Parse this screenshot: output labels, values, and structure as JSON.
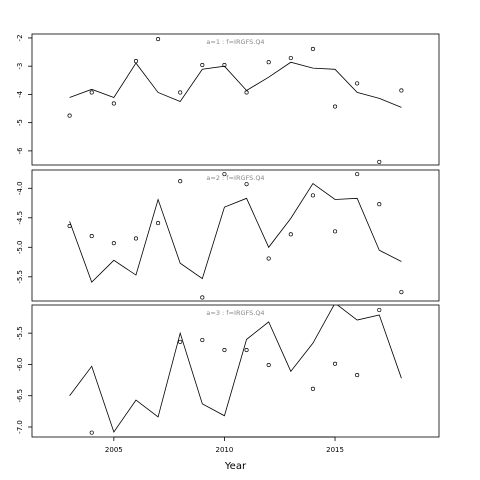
{
  "chart_data": [
    {
      "type": "line",
      "annotation": "a=1 : f=IRGFS.Q4",
      "x": [
        2003,
        2004,
        2005,
        2006,
        2007,
        2008,
        2009,
        2010,
        2011,
        2012,
        2013,
        2014,
        2015,
        2016,
        2017,
        2018
      ],
      "xlim": [
        2001.3,
        2019.7
      ],
      "ylim": [
        -6.5,
        -1.86
      ],
      "yticks": [
        -2,
        -3,
        -4,
        -5,
        -6
      ],
      "series": [
        {
          "style": "line",
          "color": "#000000",
          "values": [
            -4.11,
            -3.82,
            -4.11,
            -2.89,
            -3.93,
            -4.25,
            -3.11,
            -3.0,
            -3.86,
            -3.39,
            -2.86,
            -3.07,
            -3.11,
            -3.93,
            -4.14,
            -4.46
          ]
        },
        {
          "style": "points",
          "color": "#000000",
          "values": [
            -4.75,
            -3.93,
            -4.32,
            -2.82,
            -2.04,
            -3.93,
            -2.96,
            -2.96,
            -3.93,
            -2.86,
            -2.71,
            -2.39,
            -4.43,
            -3.61,
            -6.39,
            -3.86
          ]
        }
      ]
    },
    {
      "type": "line",
      "annotation": "a=2 : f=IRGFS.Q4",
      "x": [
        2003,
        2004,
        2005,
        2006,
        2007,
        2008,
        2009,
        2010,
        2011,
        2012,
        2013,
        2014,
        2015,
        2016,
        2017,
        2018
      ],
      "xlim": [
        2001.3,
        2019.7
      ],
      "ylim": [
        -5.91,
        -3.69
      ],
      "yticks": [
        {
          "value": -4,
          "label": "-4.0"
        },
        -4.5,
        {
          "value": -5,
          "label": "-5.0"
        },
        -5.5
      ],
      "series": [
        {
          "style": "line",
          "color": "#000000",
          "values": [
            -4.56,
            -5.59,
            -5.22,
            -5.47,
            -4.19,
            -5.27,
            -5.53,
            -4.32,
            -4.17,
            -5.0,
            -4.51,
            -3.92,
            -4.19,
            -4.17,
            -5.05,
            -5.24
          ]
        },
        {
          "style": "points",
          "color": "#000000",
          "values": [
            -4.64,
            -4.81,
            -4.93,
            -4.85,
            -4.59,
            -3.88,
            -5.85,
            -3.76,
            -3.93,
            -5.19,
            -4.78,
            -4.12,
            -4.73,
            -3.76,
            -4.27,
            -5.76
          ]
        }
      ]
    },
    {
      "type": "line",
      "annotation": "a=3 : f=IRGFS.Q4",
      "x": [
        2003,
        2004,
        2005,
        2006,
        2007,
        2008,
        2009,
        2010,
        2011,
        2012,
        2013,
        2014,
        2015,
        2016,
        2017,
        2018
      ],
      "xlim": [
        2001.3,
        2019.7
      ],
      "ylim": [
        -7.16,
        -5.05
      ],
      "yticks": [
        -5.5,
        {
          "value": -6,
          "label": "-6.0"
        },
        -6.5,
        {
          "value": -7,
          "label": "-7.0"
        }
      ],
      "xticks": [
        2005,
        2010,
        2015
      ],
      "xlabel": "Year",
      "series": [
        {
          "style": "line",
          "color": "#000000",
          "values": [
            -6.5,
            -6.03,
            -7.08,
            -6.57,
            -6.84,
            -5.5,
            -6.63,
            -6.82,
            -5.6,
            -5.32,
            -6.11,
            -5.66,
            -5.02,
            -5.29,
            -5.21,
            -6.22
          ]
        },
        {
          "style": "points",
          "color": "#000000",
          "values": [
            null,
            -7.09,
            null,
            null,
            null,
            -5.64,
            -5.61,
            -5.77,
            -5.77,
            -6.01,
            null,
            -6.39,
            -5.99,
            -6.17,
            -5.13,
            null
          ]
        }
      ]
    }
  ]
}
